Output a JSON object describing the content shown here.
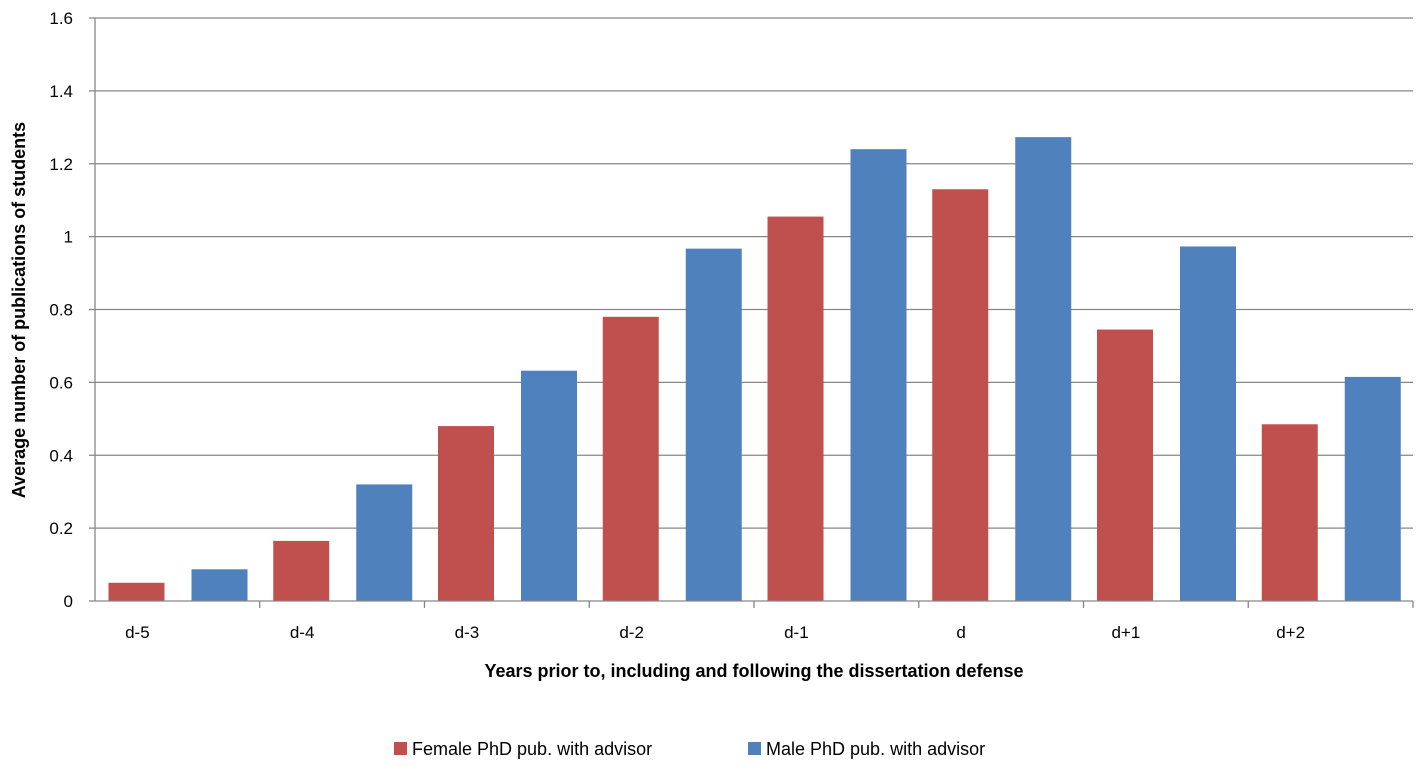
{
  "chart_data": {
    "type": "bar",
    "title": "",
    "xlabel": "Years prior to, including and following the dissertation defense",
    "ylabel": "Average number of publications of students",
    "categories": [
      "d-5",
      "d-4",
      "d-3",
      "d-2",
      "d-1",
      "d",
      "d+1",
      "d+2"
    ],
    "ylim": [
      0,
      1.6
    ],
    "yticks": [
      "0",
      "0.2",
      "0.4",
      "0.6",
      "0.8",
      "1",
      "1.2",
      "1.4",
      "1.6"
    ],
    "grid": true,
    "legend_position": "bottom",
    "series": [
      {
        "name": "Female PhD pub. with advisor",
        "color": "#c0504d",
        "values": [
          0.05,
          0.165,
          0.48,
          0.78,
          1.055,
          1.13,
          0.745,
          0.485
        ]
      },
      {
        "name": "Male PhD pub. with advisor",
        "color": "#4f81bd",
        "values": [
          0.087,
          0.32,
          0.632,
          0.967,
          1.24,
          1.273,
          0.973,
          0.615
        ]
      }
    ]
  }
}
